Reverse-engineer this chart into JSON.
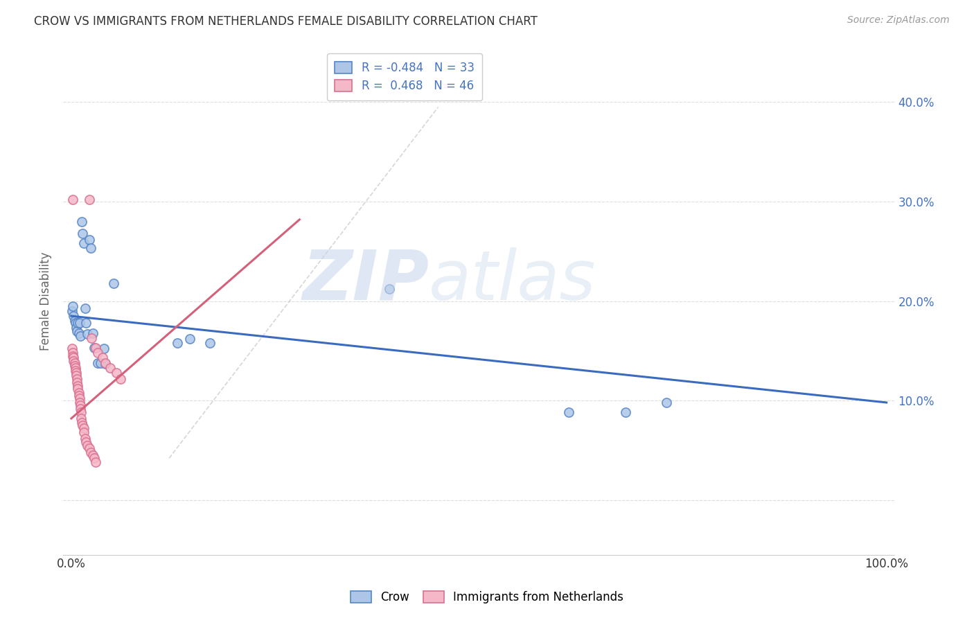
{
  "title": "CROW VS IMMIGRANTS FROM NETHERLANDS FEMALE DISABILITY CORRELATION CHART",
  "source": "Source: ZipAtlas.com",
  "ylabel": "Female Disability",
  "legend_crow": "Crow",
  "legend_immigrants": "Immigrants from Netherlands",
  "r_crow": -0.484,
  "n_crow": 33,
  "r_immigrants": 0.468,
  "n_immigrants": 46,
  "crow_color": "#adc6e8",
  "crow_edge_color": "#5585c5",
  "immigrant_color": "#f5b8c8",
  "immigrant_edge_color": "#d87090",
  "crow_line_color": "#3a6bbf",
  "immigrant_line_color": "#d4607a",
  "diag_line_color": "#cccccc",
  "crow_scatter": [
    [
      0.001,
      0.19
    ],
    [
      0.002,
      0.195
    ],
    [
      0.003,
      0.185
    ],
    [
      0.004,
      0.18
    ],
    [
      0.005,
      0.178
    ],
    [
      0.006,
      0.173
    ],
    [
      0.007,
      0.17
    ],
    [
      0.008,
      0.178
    ],
    [
      0.009,
      0.168
    ],
    [
      0.01,
      0.178
    ],
    [
      0.011,
      0.165
    ],
    [
      0.013,
      0.28
    ],
    [
      0.014,
      0.268
    ],
    [
      0.015,
      0.258
    ],
    [
      0.017,
      0.193
    ],
    [
      0.018,
      0.178
    ],
    [
      0.02,
      0.167
    ],
    [
      0.022,
      0.262
    ],
    [
      0.024,
      0.253
    ],
    [
      0.026,
      0.168
    ],
    [
      0.028,
      0.153
    ],
    [
      0.032,
      0.138
    ],
    [
      0.036,
      0.138
    ],
    [
      0.04,
      0.152
    ],
    [
      0.042,
      0.137
    ],
    [
      0.052,
      0.218
    ],
    [
      0.13,
      0.158
    ],
    [
      0.145,
      0.162
    ],
    [
      0.17,
      0.158
    ],
    [
      0.39,
      0.212
    ],
    [
      0.61,
      0.088
    ],
    [
      0.68,
      0.088
    ],
    [
      0.73,
      0.098
    ]
  ],
  "immigrant_scatter": [
    [
      0.001,
      0.152
    ],
    [
      0.002,
      0.148
    ],
    [
      0.002,
      0.145
    ],
    [
      0.003,
      0.143
    ],
    [
      0.003,
      0.14
    ],
    [
      0.004,
      0.138
    ],
    [
      0.004,
      0.135
    ],
    [
      0.005,
      0.133
    ],
    [
      0.005,
      0.13
    ],
    [
      0.006,
      0.128
    ],
    [
      0.006,
      0.125
    ],
    [
      0.007,
      0.122
    ],
    [
      0.007,
      0.118
    ],
    [
      0.008,
      0.115
    ],
    [
      0.008,
      0.112
    ],
    [
      0.009,
      0.108
    ],
    [
      0.009,
      0.105
    ],
    [
      0.01,
      0.102
    ],
    [
      0.01,
      0.098
    ],
    [
      0.011,
      0.095
    ],
    [
      0.011,
      0.092
    ],
    [
      0.012,
      0.088
    ],
    [
      0.012,
      0.082
    ],
    [
      0.013,
      0.078
    ],
    [
      0.014,
      0.075
    ],
    [
      0.015,
      0.072
    ],
    [
      0.015,
      0.068
    ],
    [
      0.017,
      0.062
    ],
    [
      0.018,
      0.058
    ],
    [
      0.02,
      0.055
    ],
    [
      0.022,
      0.052
    ],
    [
      0.024,
      0.048
    ],
    [
      0.026,
      0.045
    ],
    [
      0.028,
      0.042
    ],
    [
      0.03,
      0.038
    ],
    [
      0.002,
      0.302
    ],
    [
      0.022,
      0.302
    ],
    [
      0.025,
      0.163
    ],
    [
      0.03,
      0.153
    ],
    [
      0.032,
      0.148
    ],
    [
      0.038,
      0.143
    ],
    [
      0.042,
      0.138
    ],
    [
      0.048,
      0.133
    ],
    [
      0.055,
      0.128
    ],
    [
      0.06,
      0.122
    ]
  ],
  "crow_line": [
    [
      0.0,
      0.185
    ],
    [
      1.0,
      0.098
    ]
  ],
  "immigrant_line": [
    [
      0.0,
      0.082
    ],
    [
      0.28,
      0.282
    ]
  ],
  "diag_line": [
    [
      0.12,
      0.042
    ],
    [
      0.45,
      0.395
    ]
  ],
  "xlim": [
    -0.01,
    1.01
  ],
  "ylim": [
    -0.055,
    0.455
  ],
  "xticks": [
    0.0,
    0.25,
    0.5,
    0.75,
    1.0
  ],
  "xtick_labels": [
    "0.0%",
    "",
    "",
    "",
    "100.0%"
  ],
  "yticks": [
    0.0,
    0.1,
    0.2,
    0.3,
    0.4
  ],
  "ytick_right_labels": [
    "",
    "10.0%",
    "20.0%",
    "30.0%",
    "40.0%"
  ],
  "watermark_zip": "ZIP",
  "watermark_atlas": "atlas",
  "background_color": "#ffffff",
  "grid_color": "#dddddd",
  "axis_color": "#cccccc",
  "text_color": "#333333",
  "right_axis_color": "#4472c4",
  "title_fontsize": 12,
  "source_fontsize": 10,
  "axis_label_fontsize": 12,
  "tick_fontsize": 12
}
